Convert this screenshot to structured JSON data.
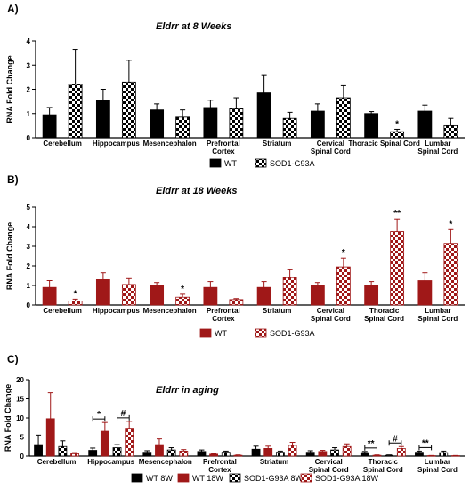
{
  "chart_data": [
    {
      "type": "bar",
      "panel": "A)",
      "title": "Eldrr at 8 Weeks",
      "ylabel": "RNA Fold Change",
      "ylim": [
        0,
        4
      ],
      "yticks": [
        "0",
        "1",
        "2",
        "3",
        "4"
      ],
      "categories": [
        "Cerebellum",
        "Hippocampus",
        "Mesencephalon",
        "Prefrontal\nCortex",
        "Striatum",
        "Cervical\nSpinal Cord",
        "Thoracic Spinal Cord",
        "Lumbar\nSpinal Cord"
      ],
      "series": [
        {
          "name": "WT",
          "color": "#000000",
          "pattern": "solid",
          "values": [
            0.95,
            1.55,
            1.15,
            1.25,
            1.85,
            1.1,
            1.0,
            1.1
          ],
          "errors": [
            0.3,
            0.45,
            0.25,
            0.3,
            0.75,
            0.3,
            0.08,
            0.25
          ]
        },
        {
          "name": "SOD1-G93A",
          "color": "#000000",
          "pattern": "checker",
          "values": [
            2.2,
            2.3,
            0.85,
            1.2,
            0.8,
            1.65,
            0.25,
            0.5
          ],
          "errors": [
            1.45,
            0.9,
            0.3,
            0.45,
            0.25,
            0.5,
            0.1,
            0.3
          ]
        }
      ],
      "annotations": [
        {
          "category_index": 6,
          "series_index": 1,
          "text": "*"
        }
      ],
      "legend_position": "bottom"
    },
    {
      "type": "bar",
      "panel": "B)",
      "title": "Eldrr at 18 Weeks",
      "ylabel": "RNA Fold Change",
      "ylim": [
        0,
        5
      ],
      "yticks": [
        "0",
        "1",
        "2",
        "3",
        "4",
        "5"
      ],
      "categories": [
        "Cerebellum",
        "Hippocampus",
        "Mesencephalon",
        "Prefrontal\nCortex",
        "Striatum",
        "Cervical\nSpinal Cord",
        "Thoracic\nSpinal Cord",
        "Lumbar\nSpinal Cord"
      ],
      "series": [
        {
          "name": "WT",
          "color": "#a01818",
          "pattern": "solid",
          "values": [
            0.9,
            1.3,
            1.0,
            0.9,
            0.9,
            1.0,
            1.0,
            1.25
          ],
          "errors": [
            0.35,
            0.35,
            0.15,
            0.3,
            0.3,
            0.15,
            0.2,
            0.4
          ]
        },
        {
          "name": "SOD1-G93A",
          "color": "#a01818",
          "pattern": "checker",
          "values": [
            0.2,
            1.05,
            0.4,
            0.28,
            1.4,
            1.95,
            3.75,
            3.15
          ],
          "errors": [
            0.1,
            0.3,
            0.15,
            0.05,
            0.4,
            0.45,
            0.65,
            0.7
          ]
        }
      ],
      "annotations": [
        {
          "category_index": 0,
          "series_index": 1,
          "text": "*"
        },
        {
          "category_index": 2,
          "series_index": 1,
          "text": "*"
        },
        {
          "category_index": 5,
          "series_index": 1,
          "text": "*"
        },
        {
          "category_index": 6,
          "series_index": 1,
          "text": "**"
        },
        {
          "category_index": 7,
          "series_index": 1,
          "text": "*"
        }
      ],
      "legend_position": "bottom"
    },
    {
      "type": "bar",
      "panel": "C)",
      "title": "Eldrr in aging",
      "ylabel": "RNA Fold Change",
      "ylim": [
        0,
        20
      ],
      "yticks": [
        "0",
        "5",
        "10",
        "15",
        "20"
      ],
      "categories": [
        "Cerebellum",
        "Hippocampus",
        "Mesencephalon",
        "Prefrontal\nCortex",
        "Striatum",
        "Cervical\nSpinal Cord",
        "Thoracic\nSpinal Cord",
        "Lumbar\nSpinal Cord"
      ],
      "series": [
        {
          "name": "WT 8W",
          "color": "#000000",
          "pattern": "solid",
          "values": [
            3.0,
            1.5,
            1.0,
            1.2,
            1.8,
            1.0,
            0.9,
            1.0
          ],
          "errors": [
            2.5,
            0.6,
            0.4,
            0.4,
            0.8,
            0.4,
            0.3,
            0.3
          ]
        },
        {
          "name": "WT 18W",
          "color": "#a01818",
          "pattern": "solid",
          "values": [
            9.8,
            6.5,
            3.0,
            0.5,
            2.0,
            1.2,
            0.2,
            0.1
          ],
          "errors": [
            6.8,
            2.3,
            1.5,
            0.2,
            0.6,
            0.3,
            0.1,
            0.05
          ]
        },
        {
          "name": "SOD1-G93A 8W",
          "color": "#000000",
          "pattern": "checker",
          "values": [
            2.5,
            2.2,
            1.6,
            1.0,
            1.0,
            1.6,
            0.2,
            0.9
          ],
          "errors": [
            1.5,
            0.8,
            0.6,
            0.3,
            0.3,
            0.6,
            0.1,
            0.4
          ]
        },
        {
          "name": "SOD1-G93A 18W",
          "color": "#a01818",
          "pattern": "checker",
          "values": [
            0.6,
            7.3,
            1.3,
            0.2,
            2.8,
            2.5,
            2.0,
            0.1
          ],
          "errors": [
            0.3,
            1.8,
            0.4,
            0.1,
            0.8,
            0.7,
            0.5,
            0.05
          ]
        }
      ],
      "brackets": [
        {
          "category_index": 1,
          "series": [
            0,
            1
          ],
          "text": "*"
        },
        {
          "category_index": 1,
          "series": [
            2,
            3
          ],
          "text": "#"
        },
        {
          "category_index": 6,
          "series": [
            0,
            1
          ],
          "text": "**"
        },
        {
          "category_index": 6,
          "series": [
            2,
            3
          ],
          "text": "#"
        },
        {
          "category_index": 7,
          "series": [
            0,
            1
          ],
          "text": "**"
        }
      ],
      "legend_position": "bottom"
    }
  ]
}
